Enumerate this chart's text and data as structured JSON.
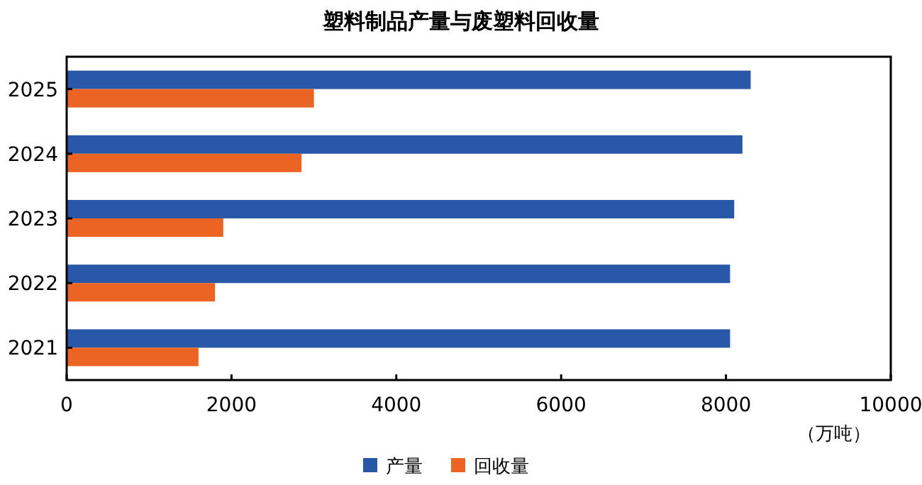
{
  "chart_data": {
    "type": "bar",
    "orientation": "horizontal",
    "title": "塑料制品产量与废塑料回收量",
    "xlabel": "（万吨）",
    "categories": [
      "2025",
      "2024",
      "2023",
      "2022",
      "2021"
    ],
    "series": [
      {
        "name": "产量",
        "color": "#2a58a8",
        "values": [
          8300,
          8200,
          8100,
          8050,
          8050
        ]
      },
      {
        "name": "回收量",
        "color": "#eb6423",
        "values": [
          3000,
          2850,
          1900,
          1800,
          1600
        ]
      }
    ],
    "xlim": [
      0,
      10000
    ],
    "xticks": [
      0,
      2000,
      4000,
      6000,
      8000,
      10000
    ],
    "grid": false,
    "legend": "bottom"
  }
}
